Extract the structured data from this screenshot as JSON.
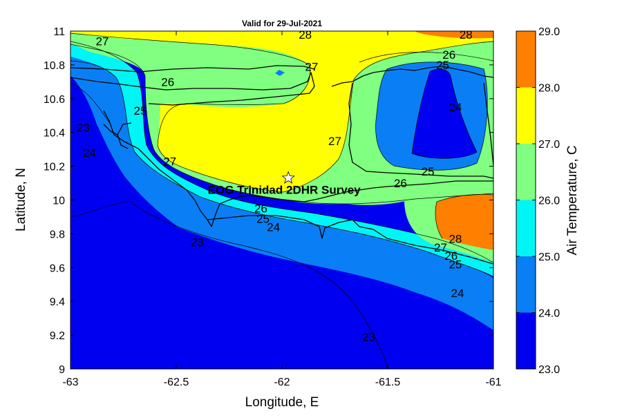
{
  "title": "Valid for 29-Jul-2021",
  "chart_data": {
    "type": "heatmap",
    "title": "Valid for 29-Jul-2021",
    "xlabel": "Longitude, E",
    "ylabel": "Latitude, N",
    "xlim": [
      -63,
      -61
    ],
    "ylim": [
      9,
      11
    ],
    "x_ticks": [
      "-63",
      "-62.5",
      "-62",
      "-61.5",
      "-61"
    ],
    "y_ticks": [
      "9",
      "9.2",
      "9.4",
      "9.6",
      "9.8",
      "10",
      "10.2",
      "10.4",
      "10.6",
      "10.8",
      "11"
    ],
    "colorbar": {
      "label": "Air Temperature, C",
      "ticks": [
        "23.0",
        "24.0",
        "25.0",
        "26.0",
        "27.0",
        "28.0",
        "29.0"
      ],
      "levels": [
        {
          "from": 23,
          "to": 24,
          "color": "#0000f0"
        },
        {
          "from": 24,
          "to": 25,
          "color": "#0a7ff5"
        },
        {
          "from": 25,
          "to": 26,
          "color": "#00f5f5"
        },
        {
          "from": 26,
          "to": 27,
          "color": "#80ff80"
        },
        {
          "from": 27,
          "to": 28,
          "color": "#ffff00"
        },
        {
          "from": 28,
          "to": 29,
          "color": "#ff7f00"
        }
      ]
    },
    "contour_labels": [
      {
        "text": "28",
        "lon": -61.89,
        "lat": 10.98
      },
      {
        "text": "28",
        "lon": -61.13,
        "lat": 10.98
      },
      {
        "text": "27",
        "lon": -62.85,
        "lat": 10.94
      },
      {
        "text": "26",
        "lon": -61.21,
        "lat": 10.86
      },
      {
        "text": "25",
        "lon": -61.24,
        "lat": 10.8
      },
      {
        "text": "27",
        "lon": -61.86,
        "lat": 10.79
      },
      {
        "text": "26",
        "lon": -62.54,
        "lat": 10.7
      },
      {
        "text": "24",
        "lon": -61.18,
        "lat": 10.55
      },
      {
        "text": "25",
        "lon": -62.67,
        "lat": 10.53
      },
      {
        "text": "23",
        "lon": -62.94,
        "lat": 10.43
      },
      {
        "text": "27",
        "lon": -61.75,
        "lat": 10.35
      },
      {
        "text": "24",
        "lon": -62.91,
        "lat": 10.28
      },
      {
        "text": "27",
        "lon": -62.53,
        "lat": 10.23
      },
      {
        "text": "25",
        "lon": -61.31,
        "lat": 10.17
      },
      {
        "text": "26",
        "lon": -61.44,
        "lat": 10.1
      },
      {
        "text": "26",
        "lon": -62.1,
        "lat": 9.95
      },
      {
        "text": "25",
        "lon": -62.09,
        "lat": 9.89
      },
      {
        "text": "24",
        "lon": -62.04,
        "lat": 9.84
      },
      {
        "text": "23",
        "lon": -62.4,
        "lat": 9.75
      },
      {
        "text": "28",
        "lon": -61.18,
        "lat": 9.77
      },
      {
        "text": "27",
        "lon": -61.25,
        "lat": 9.72
      },
      {
        "text": "26",
        "lon": -61.2,
        "lat": 9.67
      },
      {
        "text": "25",
        "lon": -61.18,
        "lat": 9.62
      },
      {
        "text": "24",
        "lon": -61.17,
        "lat": 9.45
      },
      {
        "text": "23",
        "lon": -61.59,
        "lat": 9.19
      }
    ],
    "marker": {
      "lon": -61.97,
      "lat": 10.13,
      "symbol": "star",
      "label": "EOG Trinidad 2DHR Survey"
    }
  }
}
